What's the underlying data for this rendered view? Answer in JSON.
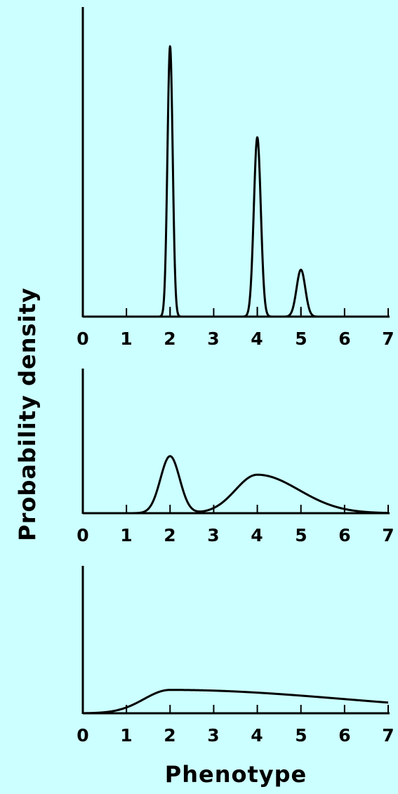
{
  "colors": {
    "background": "#ccffff",
    "ink": "#000000"
  },
  "ylabel": "Probability density",
  "xlabel": "Phenotype",
  "chart_data": [
    {
      "type": "line",
      "title": "",
      "x_ticks": [
        "0",
        "1",
        "2",
        "3",
        "4",
        "5",
        "6",
        "7"
      ],
      "xlim": [
        0,
        7
      ],
      "ylim": [
        0,
        1
      ],
      "grid": false,
      "x_peak_markers": [
        2,
        4,
        5
      ],
      "components": [
        {
          "mean": 2.0,
          "sd": 0.06,
          "height": 0.98
        },
        {
          "mean": 4.0,
          "sd": 0.08,
          "height": 0.65
        },
        {
          "mean": 5.0,
          "sd": 0.1,
          "height": 0.17
        }
      ]
    },
    {
      "type": "line",
      "title": "",
      "x_ticks": [
        "0",
        "1",
        "2",
        "3",
        "4",
        "5",
        "6",
        "7"
      ],
      "xlim": [
        0,
        7
      ],
      "ylim": [
        0,
        1
      ],
      "grid": false,
      "components": [
        {
          "mean": 2.0,
          "sd": 0.22,
          "height": 0.4
        },
        {
          "mean": 4.0,
          "sd": 0.5,
          "sd_right": 0.95,
          "height": 0.27
        }
      ]
    },
    {
      "type": "line",
      "title": "",
      "x_ticks": [
        "0",
        "1",
        "2",
        "3",
        "4",
        "5",
        "6",
        "7"
      ],
      "xlim": [
        0,
        7
      ],
      "ylim": [
        0,
        1
      ],
      "grid": false,
      "components": [
        {
          "mean": 2.0,
          "sd": 0.6,
          "sd_right": 4.0,
          "height": 0.16
        }
      ]
    }
  ]
}
